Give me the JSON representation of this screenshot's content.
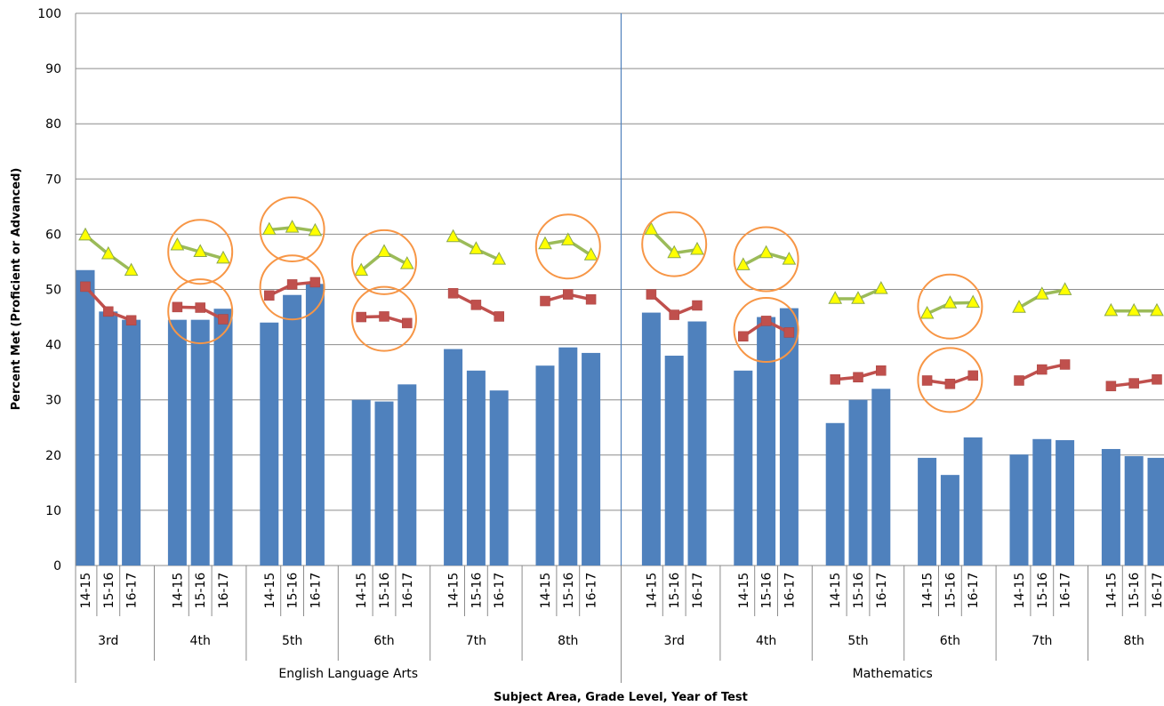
{
  "chart_data": {
    "type": "bar",
    "title": "",
    "xlabel": "Subject Area, Grade Level, Year of Test",
    "ylabel": "Percent Met (Proficient or Advanced)",
    "ylim": [
      0,
      100
    ],
    "yticks": [
      0,
      10,
      20,
      30,
      40,
      50,
      60,
      70,
      80,
      90,
      100
    ],
    "grid": true,
    "legend": "none",
    "subjects": [
      {
        "name": "English Language Arts",
        "grades": [
          "3rd",
          "4th",
          "5th",
          "6th",
          "7th",
          "8th"
        ]
      },
      {
        "name": "Mathematics",
        "grades": [
          "3rd",
          "4th",
          "5th",
          "6th",
          "7th",
          "8th"
        ]
      }
    ],
    "years": [
      "14-15",
      "15-16",
      "16-17"
    ],
    "colors": {
      "bar": "#4F81BD",
      "square_line": "#C0504D",
      "triangle_line": "#9BBB59",
      "triangle_fill": "#FFFF00",
      "circle": "#F79646",
      "divider": "#4F81BD"
    },
    "series": [
      {
        "values": [
          53.5,
          46,
          44.5,
          44.5,
          44.5,
          46.5,
          44,
          49,
          51,
          30,
          29.7,
          32.8,
          39.2,
          35.3,
          31.7,
          36.2,
          39.5,
          38.5,
          45.8,
          38,
          44.2,
          35.3,
          45,
          46.6,
          25.8,
          30,
          32,
          19.5,
          16.4,
          23.2,
          20.1,
          22.9,
          22.7,
          21.1,
          19.8,
          19.5
        ]
      },
      {
        "values": [
          50.5,
          46,
          44.4,
          46.8,
          46.7,
          44.6,
          48.9,
          50.9,
          51.3,
          45,
          45.1,
          43.9,
          49.3,
          47.2,
          45.1,
          47.9,
          49.1,
          48.2,
          49.1,
          45.4,
          47.1,
          41.5,
          44.3,
          42.2,
          33.7,
          34.1,
          35.3,
          33.5,
          32.9,
          34.4,
          33.5,
          35.5,
          36.4,
          32.5,
          33,
          33.7
        ]
      },
      {
        "values": [
          59.8,
          56.4,
          53.4,
          58,
          56.8,
          55.6,
          60.8,
          61.2,
          60.6,
          53.4,
          56.8,
          54.6,
          59.5,
          57.3,
          55.4,
          58.2,
          58.9,
          56.2,
          60.8,
          56.6,
          57.2,
          54.4,
          56.6,
          55.4,
          48.3,
          48.3,
          50.1,
          45.6,
          47.5,
          47.6,
          46.7,
          49.1,
          49.9,
          46.1,
          46.1,
          46.1
        ]
      }
    ],
    "highlighted": [
      {
        "series": 2,
        "subject": 0,
        "grade": 1
      },
      {
        "series": 1,
        "subject": 0,
        "grade": 1
      },
      {
        "series": 2,
        "subject": 0,
        "grade": 2
      },
      {
        "series": 1,
        "subject": 0,
        "grade": 2
      },
      {
        "series": 2,
        "subject": 0,
        "grade": 3
      },
      {
        "series": 1,
        "subject": 0,
        "grade": 3
      },
      {
        "series": 2,
        "subject": 0,
        "grade": 5
      },
      {
        "series": 2,
        "subject": 1,
        "grade": 0
      },
      {
        "series": 2,
        "subject": 1,
        "grade": 1
      },
      {
        "series": 1,
        "subject": 1,
        "grade": 1
      },
      {
        "series": 2,
        "subject": 1,
        "grade": 3
      },
      {
        "series": 1,
        "subject": 1,
        "grade": 3
      }
    ]
  }
}
